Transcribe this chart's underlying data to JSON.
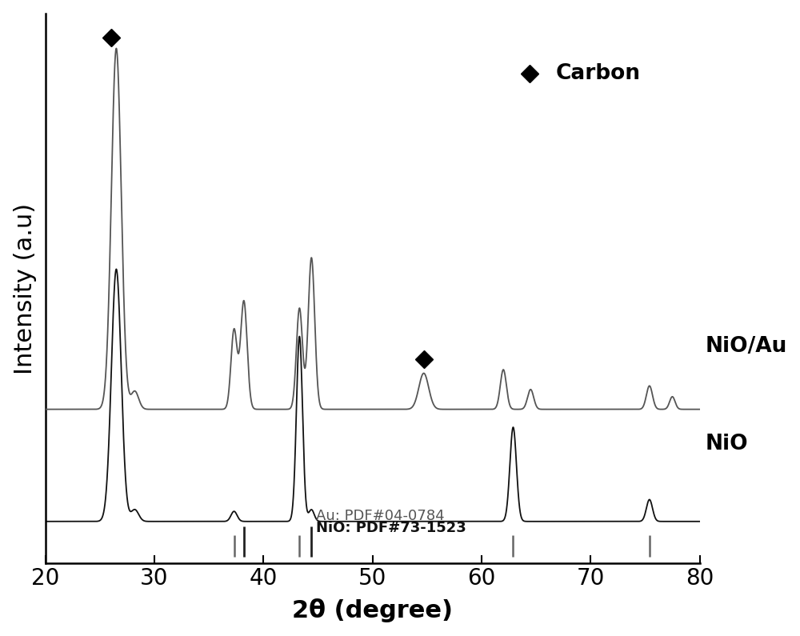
{
  "xlim": [
    20,
    80
  ],
  "xlabel": "2θ (degree)",
  "ylabel": "Intensity (a.u)",
  "background_color": "#ffffff",
  "line_color_NiO_Au": "#555555",
  "line_color_NiO": "#111111",
  "label_NiO_Au": "NiO/Au",
  "label_NiO": "NiO",
  "carbon_label": "Carbon",
  "Au_PDF": "Au: PDF#04-0784",
  "NiO_PDF": "NiO: PDF#73-1523",
  "tick_fontsize": 20,
  "label_fontsize": 22,
  "annotation_fontsize": 19
}
